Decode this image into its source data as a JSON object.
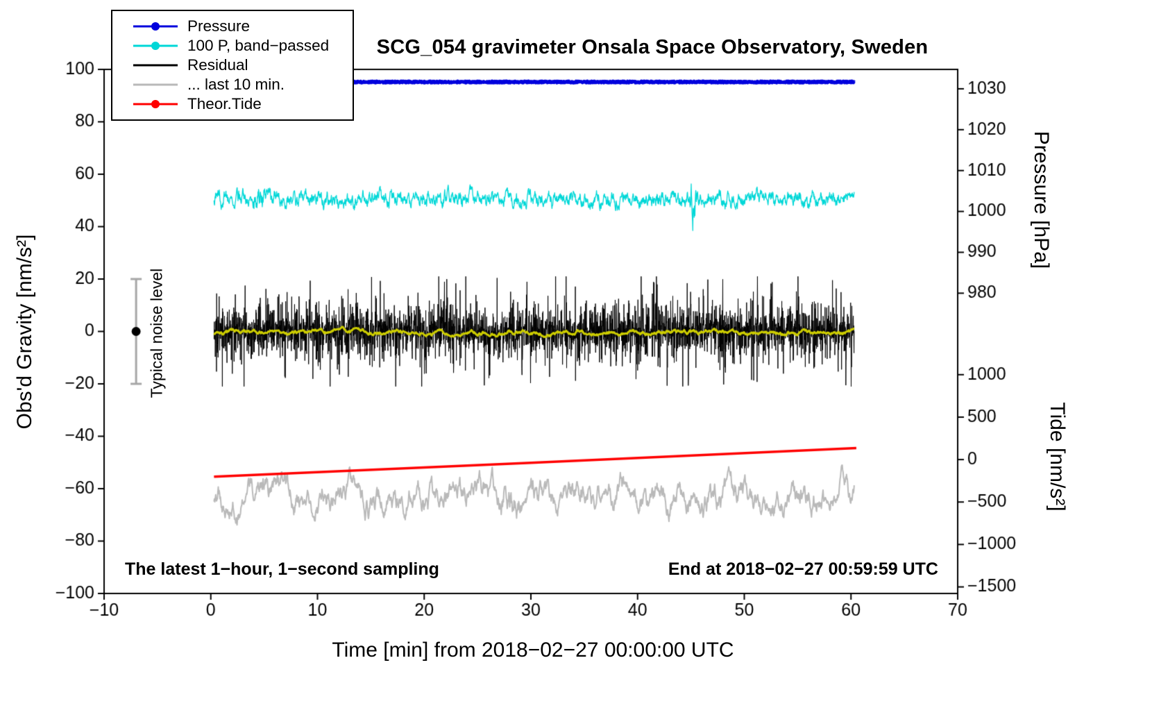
{
  "chart_data": {
    "type": "line",
    "title": "SCG_054 gravimeter Onsala Space Observatory, Sweden",
    "xlabel": "Time [min] from 2018−02−27 00:00:00 UTC",
    "ylabel_left": "Obs'd Gravity [nm/s²]",
    "ylabel_pressure": "Pressure [hPa]",
    "ylabel_tide": "Tide [nm/s²]",
    "xlim": [
      -10,
      70
    ],
    "ylim": [
      -100,
      100
    ],
    "x_ticks": [
      {
        "v": -10,
        "label": "−10"
      },
      {
        "v": 0,
        "label": "0"
      },
      {
        "v": 10,
        "label": "10"
      },
      {
        "v": 20,
        "label": "20"
      },
      {
        "v": 30,
        "label": "30"
      },
      {
        "v": 40,
        "label": "40"
      },
      {
        "v": 50,
        "label": "50"
      },
      {
        "v": 60,
        "label": "60"
      },
      {
        "v": 70,
        "label": "70"
      }
    ],
    "y_ticks": [
      {
        "v": -100,
        "label": "−100"
      },
      {
        "v": -80,
        "label": "−80"
      },
      {
        "v": -60,
        "label": "−60"
      },
      {
        "v": -40,
        "label": "−40"
      },
      {
        "v": -20,
        "label": "−20"
      },
      {
        "v": 0,
        "label": "0"
      },
      {
        "v": 20,
        "label": "20"
      },
      {
        "v": 40,
        "label": "40"
      },
      {
        "v": 60,
        "label": "60"
      },
      {
        "v": 80,
        "label": "80"
      },
      {
        "v": 100,
        "label": "100"
      }
    ],
    "pressure_ticks": [
      {
        "g": 92.6,
        "label": "1030"
      },
      {
        "g": 77.0,
        "label": "1020"
      },
      {
        "g": 61.4,
        "label": "1010"
      },
      {
        "g": 45.8,
        "label": "1000"
      },
      {
        "g": 30.2,
        "label": "990"
      },
      {
        "g": 14.6,
        "label": "980"
      }
    ],
    "tide_ticks": [
      {
        "g": -16.5,
        "label": "1000"
      },
      {
        "g": -32.7,
        "label": "500"
      },
      {
        "g": -48.9,
        "label": "0"
      },
      {
        "g": -65.1,
        "label": "−500"
      },
      {
        "g": -81.3,
        "label": "−1000"
      },
      {
        "g": -97.5,
        "label": "−1500"
      }
    ],
    "annotations": {
      "noise_level": {
        "label": "Typical noise level",
        "x": -7,
        "center_g": 0,
        "half_range": 20
      },
      "bottom_left": "The latest 1−hour, 1−second sampling",
      "bottom_right": "End at 2018−02−27 00:59:59 UTC"
    },
    "legend": [
      {
        "label": "Pressure",
        "color": "#0000dd",
        "marker": true
      },
      {
        "label": "100 P, band−passed",
        "color": "#00d7d7",
        "marker": true
      },
      {
        "label": "Residual",
        "color": "#000000",
        "marker": false
      },
      {
        "label": "... last 10 min.",
        "color": "#b9b9b9",
        "marker": false
      },
      {
        "label": "Theor.Tide",
        "color": "#ff0000",
        "marker": true
      }
    ],
    "series": [
      {
        "name": "... last 10 min.",
        "style": "ar",
        "color": "#b9b9b9",
        "baseline": -63,
        "a": 0.93,
        "k": 5.0,
        "points": 1500,
        "x_range": [
          0.3,
          60.3
        ],
        "line_width": 2,
        "spikes": [
          {
            "x": 28,
            "gain": 0.7,
            "w": 0.8
          }
        ]
      },
      {
        "name": "Theor.Tide",
        "style": "segment",
        "color": "#ff0000",
        "line_width": 3.5,
        "points_g": [
          [
            0.3,
            -55.4
          ],
          [
            30.0,
            -50.1
          ],
          [
            60.5,
            -44.5
          ]
        ]
      },
      {
        "name": "Residual",
        "style": "spiky",
        "color": "#000000",
        "baseline": 0,
        "scale": 4.0,
        "max": 21,
        "points": 3600,
        "x_range": [
          0.3,
          60.3
        ],
        "line_width": 1
      },
      {
        "name": "Residual running mean",
        "style": "ar",
        "color": "#cdcd00",
        "baseline": -0.3,
        "a": 0.9,
        "k": 1.0,
        "points": 900,
        "x_range": [
          0.3,
          60.3
        ],
        "line_width": 3
      },
      {
        "name": "100 P, band−passed",
        "style": "ar",
        "color": "#00d7d7",
        "baseline": 50.5,
        "a": 0.8,
        "k": 3.4,
        "points": 2400,
        "x_range": [
          0.3,
          60.3
        ],
        "line_width": 1.3,
        "spikes": [
          {
            "x": 45.2,
            "gain": 2.6,
            "w": 0.28
          },
          {
            "x": 4.6,
            "gain": 0.9,
            "w": 0.5
          }
        ]
      },
      {
        "name": "Pressure",
        "style": "flat",
        "color": "#0000dd",
        "baseline": 95.2,
        "noise": 0.7,
        "points": 2000,
        "x_range": [
          0.3,
          60.3
        ],
        "line_width": 4.5
      }
    ]
  }
}
